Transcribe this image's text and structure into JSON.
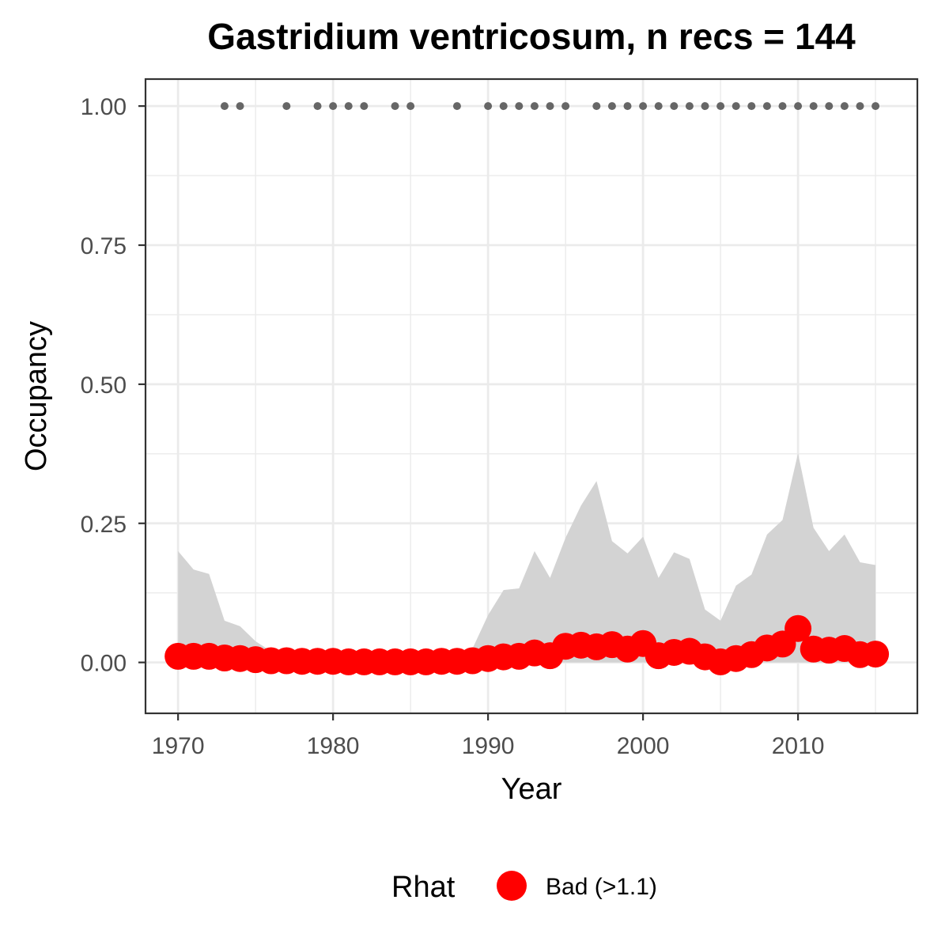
{
  "chart_data": {
    "type": "line",
    "title": "Gastridium ventricosum, n recs = 144",
    "xlabel": "Year",
    "ylabel": "Occupancy",
    "xlim": [
      1967.9,
      1016.7
    ],
    "ylim": [
      -0.0915,
      1.0485
    ],
    "x_ticks": [
      1970,
      1980,
      1990,
      2000,
      2010
    ],
    "x_tick_labels": [
      "1970",
      "1980",
      "1990",
      "2000",
      "2010"
    ],
    "x_minor_ticks": [
      1975,
      1985,
      1995,
      2005,
      2015
    ],
    "y_ticks": [
      0,
      0.25,
      0.5,
      0.75,
      1
    ],
    "y_tick_labels": [
      "0.00",
      "0.25",
      "0.50",
      "0.75",
      "1.00"
    ],
    "y_minor_ticks": [
      0.125,
      0.375,
      0.625,
      0.875
    ],
    "grid": true,
    "legend": {
      "title": "Rhat",
      "position": "bottom",
      "entries": [
        {
          "label": "Bad (>1.1)",
          "color": "#ff0000"
        }
      ]
    },
    "colors": {
      "mean": "#ff0000",
      "ribbon": "#d3d3d3",
      "records": "#666666",
      "panel_border": "#333333",
      "grid": "#ebebeb"
    },
    "series": [
      {
        "name": "mean",
        "x": [
          1970,
          1971,
          1972,
          1973,
          1974,
          1975,
          1976,
          1977,
          1978,
          1979,
          1980,
          1981,
          1982,
          1983,
          1984,
          1985,
          1986,
          1987,
          1988,
          1989,
          1990,
          1991,
          1992,
          1993,
          1994,
          1995,
          1996,
          1997,
          1998,
          1999,
          2000,
          2001,
          2002,
          2003,
          2004,
          2005,
          2006,
          2007,
          2008,
          2009,
          2010,
          2011,
          2012,
          2013,
          2014,
          2015
        ],
        "y": [
          0.011,
          0.011,
          0.011,
          0.008,
          0.007,
          0.005,
          0.003,
          0.003,
          0.002,
          0.002,
          0.002,
          0.001,
          0.001,
          0.001,
          0.001,
          0.001,
          0.001,
          0.002,
          0.002,
          0.003,
          0.007,
          0.01,
          0.011,
          0.017,
          0.012,
          0.029,
          0.031,
          0.028,
          0.032,
          0.024,
          0.034,
          0.012,
          0.018,
          0.02,
          0.01,
          0.001,
          0.007,
          0.014,
          0.026,
          0.033,
          0.061,
          0.024,
          0.022,
          0.025,
          0.014,
          0.015
        ]
      },
      {
        "name": "lower",
        "x": [
          1970,
          1971,
          1972,
          1973,
          1974,
          1975,
          1976,
          1977,
          1978,
          1979,
          1980,
          1981,
          1982,
          1983,
          1984,
          1985,
          1986,
          1987,
          1988,
          1989,
          1990,
          1991,
          1992,
          1993,
          1994,
          1995,
          1996,
          1997,
          1998,
          1999,
          2000,
          2001,
          2002,
          2003,
          2004,
          2005,
          2006,
          2007,
          2008,
          2009,
          2010,
          2011,
          2012,
          2013,
          2014,
          2015
        ],
        "y": [
          0,
          0,
          0,
          0,
          0,
          0,
          0,
          0,
          0,
          0,
          0,
          0,
          0,
          0,
          0,
          0,
          0,
          0,
          0,
          0,
          0,
          0,
          0,
          0,
          0,
          0,
          0,
          0,
          0,
          0,
          0,
          0,
          0,
          0,
          0,
          0,
          0,
          0,
          0,
          0,
          0,
          0,
          0,
          0,
          0,
          0
        ]
      },
      {
        "name": "upper",
        "x": [
          1970,
          1971,
          1972,
          1973,
          1974,
          1975,
          1976,
          1977,
          1978,
          1979,
          1980,
          1981,
          1982,
          1983,
          1984,
          1985,
          1986,
          1987,
          1988,
          1989,
          1990,
          1991,
          1992,
          1993,
          1994,
          1995,
          1996,
          1997,
          1998,
          1999,
          2000,
          2001,
          2002,
          2003,
          2004,
          2005,
          2006,
          2007,
          2008,
          2009,
          2010,
          2011,
          2012,
          2013,
          2014,
          2015
        ],
        "y": [
          0.2,
          0.167,
          0.159,
          0.075,
          0.065,
          0.038,
          0.02,
          0.02,
          0.016,
          0.014,
          0.013,
          0.012,
          0.011,
          0.011,
          0.011,
          0.011,
          0.011,
          0.012,
          0.015,
          0.025,
          0.085,
          0.13,
          0.133,
          0.2,
          0.152,
          0.224,
          0.282,
          0.326,
          0.218,
          0.196,
          0.226,
          0.152,
          0.198,
          0.186,
          0.095,
          0.075,
          0.138,
          0.158,
          0.23,
          0.256,
          0.376,
          0.242,
          0.2,
          0.23,
          0.18,
          0.175
        ]
      },
      {
        "name": "records",
        "x": [
          1973,
          1974,
          1977,
          1979,
          1980,
          1981,
          1982,
          1984,
          1985,
          1988,
          1990,
          1991,
          1992,
          1993,
          1994,
          1995,
          1997,
          1998,
          1999,
          2000,
          2001,
          2002,
          2003,
          2004,
          2005,
          2006,
          2007,
          2008,
          2009,
          2010,
          2011,
          2012,
          2013,
          2014,
          2015
        ],
        "y": [
          1,
          1,
          1,
          1,
          1,
          1,
          1,
          1,
          1,
          1,
          1,
          1,
          1,
          1,
          1,
          1,
          1,
          1,
          1,
          1,
          1,
          1,
          1,
          1,
          1,
          1,
          1,
          1,
          1,
          1,
          1,
          1,
          1,
          1,
          1
        ]
      }
    ]
  }
}
